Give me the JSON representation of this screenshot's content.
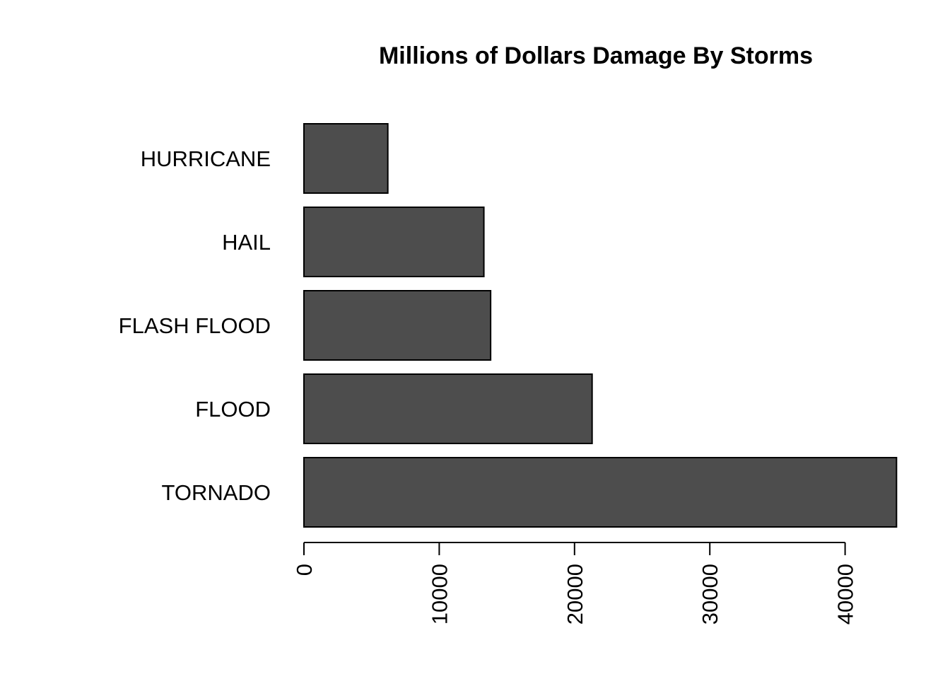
{
  "chart_data": {
    "type": "bar",
    "orientation": "horizontal",
    "title": "Millions of Dollars Damage By Storms",
    "xlabel": "",
    "ylabel": "",
    "categories": [
      "TORNADO",
      "FLOOD",
      "FLASH FLOOD",
      "HAIL",
      "HURRICANE"
    ],
    "values": [
      43800,
      21300,
      13800,
      13300,
      6200
    ],
    "xlim": [
      0,
      43800
    ],
    "x_ticks": [
      0,
      10000,
      20000,
      30000,
      40000
    ],
    "x_tick_labels": [
      "0",
      "10000",
      "20000",
      "30000",
      "40000"
    ],
    "bar_color": "#4d4d4d",
    "bar_border_color": "#000000",
    "grid": false,
    "legend": "none"
  }
}
